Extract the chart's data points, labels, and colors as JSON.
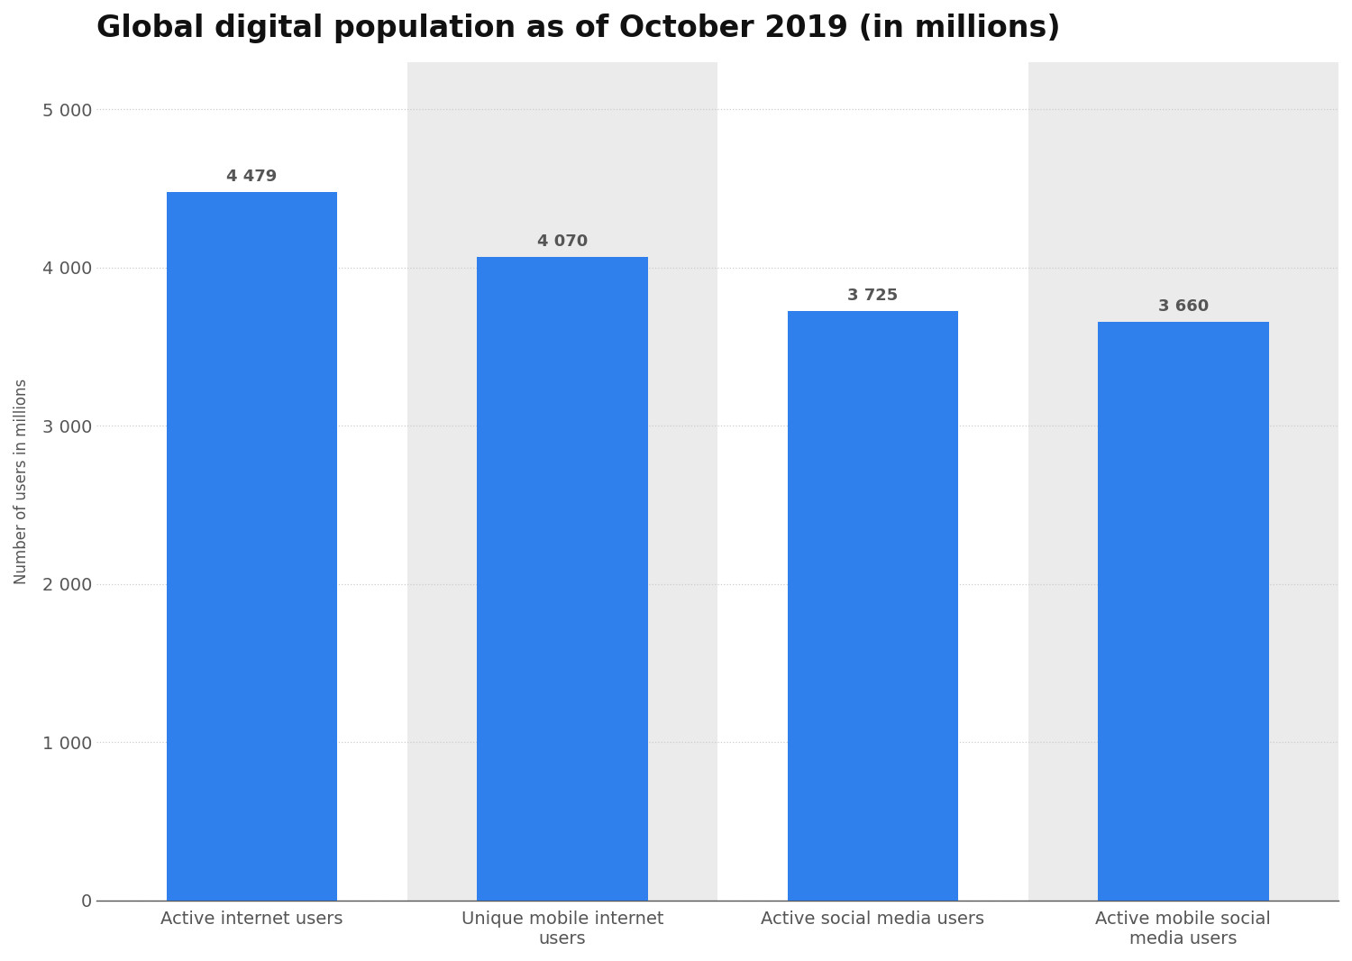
{
  "title": "Global digital population as of October 2019 (in millions)",
  "categories": [
    "Active internet users",
    "Unique mobile internet\nusers",
    "Active social media users",
    "Active mobile social\nmedia users"
  ],
  "values": [
    4479,
    4070,
    3725,
    3660
  ],
  "bar_color": "#2f80ed",
  "bar_labels": [
    "4 479",
    "4 070",
    "3 725",
    "3 660"
  ],
  "ylabel": "Number of users in millions",
  "ylim": [
    0,
    5300
  ],
  "yticks": [
    0,
    1000,
    2000,
    3000,
    4000,
    5000
  ],
  "ytick_labels": [
    "0",
    "1 000",
    "2 000",
    "3 000",
    "4 000",
    "5 000"
  ],
  "background_color": "#ffffff",
  "strip_color": "#ebebeb",
  "grid_color": "#cccccc",
  "title_fontsize": 24,
  "label_fontsize": 14,
  "tick_fontsize": 14,
  "bar_label_fontsize": 13,
  "ylabel_fontsize": 12
}
